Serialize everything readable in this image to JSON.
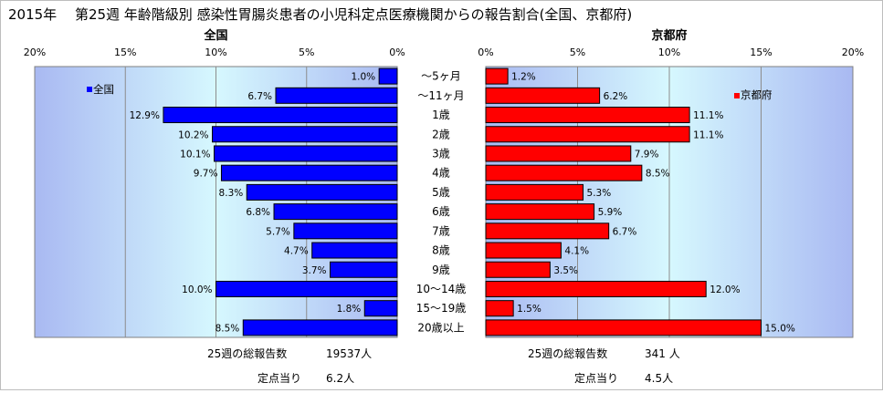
{
  "title": "2015年　 第25週 年齢階級別 感染性胃腸炎患者の小児科定点医療機関からの報告割合(全国、京都府)",
  "chart_data": {
    "type": "bar",
    "categories": [
      "～5ヶ月",
      "～11ヶ月",
      "1歳",
      "2歳",
      "3歳",
      "4歳",
      "5歳",
      "6歳",
      "7歳",
      "8歳",
      "9歳",
      "10～14歳",
      "15～19歳",
      "20歳以上"
    ],
    "tick_labels": [
      "0%",
      "5%",
      "10%",
      "15%",
      "20%"
    ],
    "xlim": [
      0,
      20
    ],
    "series": [
      {
        "name": "全国",
        "panel_title": "全国",
        "direction": "left",
        "color": "#0000ff",
        "values": [
          1.0,
          6.7,
          12.9,
          10.2,
          10.1,
          9.7,
          8.3,
          6.8,
          5.7,
          4.7,
          3.7,
          10.0,
          1.8,
          8.5
        ],
        "labels": [
          "1.0%",
          "6.7%",
          "12.9%",
          "10.2%",
          "10.1%",
          "9.7%",
          "8.3%",
          "6.8%",
          "5.7%",
          "4.7%",
          "3.7%",
          "10.0%",
          "1.8%",
          "8.5%"
        ]
      },
      {
        "name": "京都府",
        "panel_title": "京都府",
        "direction": "right",
        "color": "#ff0000",
        "values": [
          1.2,
          6.2,
          11.1,
          11.1,
          7.9,
          8.5,
          5.3,
          5.9,
          6.7,
          4.1,
          3.5,
          12.0,
          1.5,
          15.0
        ],
        "labels": [
          "1.2%",
          "6.2%",
          "11.1%",
          "11.1%",
          "7.9%",
          "8.5%",
          "5.3%",
          "5.9%",
          "6.7%",
          "4.1%",
          "3.5%",
          "12.0%",
          "1.5%",
          "15.0%"
        ]
      }
    ],
    "grid": true,
    "legend_position": "top-left inside each panel"
  },
  "footer": {
    "national": {
      "total_label": "25週の総報告数",
      "total_value": "19537人",
      "per_label": "定点当り",
      "per_value": "6.2人"
    },
    "kyoto": {
      "total_label": "25週の総報告数",
      "total_value": "341 人",
      "per_label": "定点当り",
      "per_value": "4.5人"
    }
  }
}
